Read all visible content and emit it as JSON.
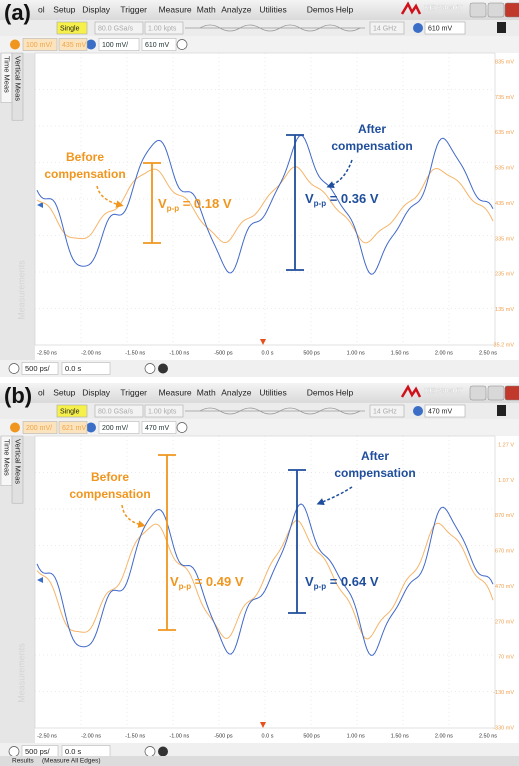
{
  "panels": [
    {
      "label": "(a)",
      "menu": [
        "ol",
        "Setup",
        "Display",
        "Trigger",
        "Measure",
        "Math",
        "Analyze",
        "Utilities",
        "Demos",
        "Help"
      ],
      "logo": "KEYSIGHT",
      "toolbar": {
        "mode": "Single",
        "sample_rate": "80.0 GSa/s",
        "points": "1.00 kpts",
        "bandwidth": "14 GHz",
        "trigger_level": "610 mV"
      },
      "channels": [
        "100 mV/",
        "435 mV",
        "100 mV/",
        "610 mV"
      ],
      "side_tabs": [
        "Time Meas",
        "Vertical Meas"
      ],
      "side_watermark": "Measurements",
      "y_labels": [
        "835 mV",
        "735 mV",
        "635 mV",
        "535 mV",
        "435 mV",
        "335 mV",
        "235 mV",
        "135 mV",
        "35.2 mV"
      ],
      "x_labels": [
        "-2.50 ns",
        "-2.00 ns",
        "-1.50 ns",
        "-1.00 ns",
        "-500 ps",
        "0.0 s",
        "500 ps",
        "1.00 ns",
        "1.50 ns",
        "2.00 ns",
        "2.50 ns"
      ],
      "timebase": "500 ps/",
      "delay": "0.0 s",
      "before": [
        "Before",
        "compensation"
      ],
      "after": [
        "After",
        "compensation"
      ],
      "vpp_before": {
        "symbol": "V",
        "subscript": "p-p",
        "value": " = 0.18 V"
      },
      "vpp_after": {
        "symbol": "V",
        "subscript": "p-p",
        "value": " = 0.36 V"
      }
    },
    {
      "label": "(b)",
      "menu": [
        "ol",
        "Setup",
        "Display",
        "Trigger",
        "Measure",
        "Math",
        "Analyze",
        "Utilities",
        "Demos",
        "Help"
      ],
      "logo": "KEYSIGHT",
      "toolbar": {
        "mode": "Single",
        "sample_rate": "80.0 GSa/s",
        "points": "1.00 kpts",
        "bandwidth": "14 GHz",
        "trigger_level": "470 mV"
      },
      "channels": [
        "200 mV/",
        "621 mV",
        "200 mV/",
        "470 mV"
      ],
      "side_tabs": [
        "Time Meas",
        "Vertical Meas"
      ],
      "side_watermark": "Measurements",
      "y_labels": [
        "1.27 V",
        "1.07 V",
        "870 mV",
        "670 mV",
        "470 mV",
        "270 mV",
        "70 mV",
        "-130 mV",
        "-330 mV"
      ],
      "x_labels": [
        "-2.50 ns",
        "-2.00 ns",
        "-1.50 ns",
        "-1.00 ns",
        "-500 ps",
        "0.0 s",
        "500 ps",
        "1.00 ns",
        "1.50 ns",
        "2.00 ns",
        "2.50 ns"
      ],
      "timebase": "500 ps/",
      "delay": "0.0 s",
      "before": [
        "Before",
        "compensation"
      ],
      "after": [
        "After",
        "compensation"
      ],
      "vpp_before": {
        "symbol": "V",
        "subscript": "p-p",
        "value": " = 0.49 V"
      },
      "vpp_after": {
        "symbol": "V",
        "subscript": "p-p",
        "value": " = 0.64 V"
      },
      "results": [
        "Results",
        "(Measure All Edges)"
      ]
    }
  ]
}
